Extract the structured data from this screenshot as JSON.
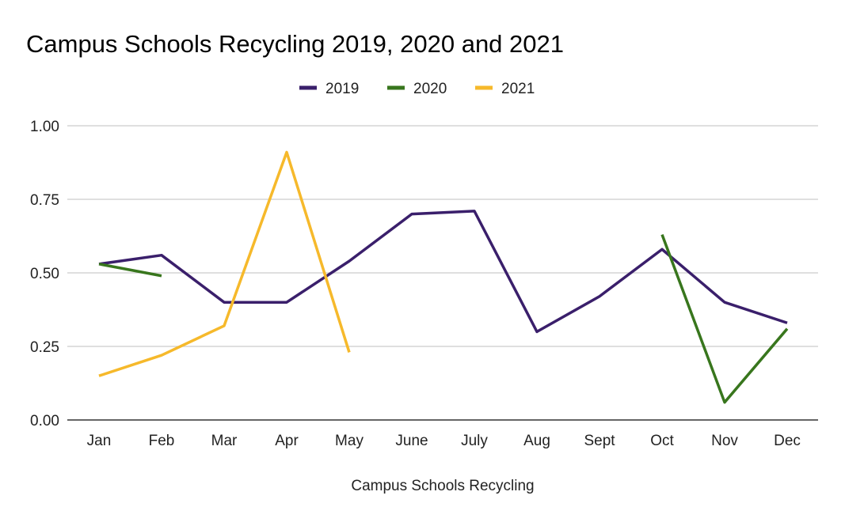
{
  "chart_data": {
    "type": "line",
    "title": "Campus Schools Recycling 2019, 2020 and 2021",
    "xlabel": "Campus Schools Recycling",
    "ylabel": "",
    "categories": [
      "Jan",
      "Feb",
      "Mar",
      "Apr",
      "May",
      "June",
      "July",
      "Aug",
      "Sept",
      "Oct",
      "Nov",
      "Dec"
    ],
    "ylim": [
      0,
      1
    ],
    "yticks": [
      "0.00",
      "0.25",
      "0.50",
      "0.75",
      "1.00"
    ],
    "grid": true,
    "legend": "top-center",
    "series": [
      {
        "name": "2019",
        "color": "#3a1f6b",
        "values": [
          0.53,
          0.56,
          0.4,
          0.4,
          0.54,
          0.7,
          0.71,
          0.3,
          0.42,
          0.58,
          0.4,
          0.33
        ]
      },
      {
        "name": "2020",
        "color": "#38761d",
        "values": [
          0.53,
          0.49,
          null,
          null,
          null,
          null,
          null,
          null,
          null,
          0.63,
          0.06,
          0.31
        ]
      },
      {
        "name": "2021",
        "color": "#f6b92b",
        "values": [
          0.15,
          0.22,
          0.32,
          0.91,
          0.23,
          null,
          null,
          null,
          null,
          null,
          null,
          null
        ]
      }
    ]
  }
}
